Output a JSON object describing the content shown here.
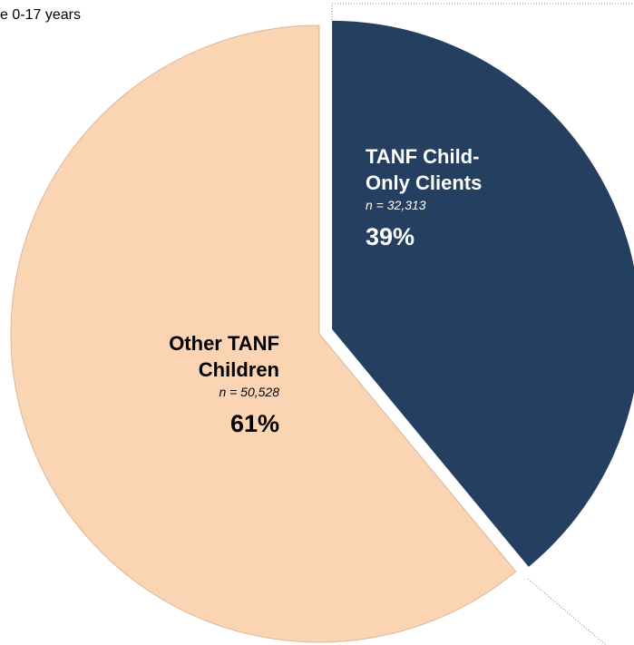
{
  "chart_data": {
    "type": "pie",
    "subtitle": "e 0-17 years",
    "categories": [
      "TANF Child-Only Clients",
      "Other TANF Children"
    ],
    "values": [
      39,
      61
    ],
    "value_labels": [
      "39%",
      "61%"
    ],
    "count_labels": [
      "n = 32,313",
      "n = 50,528"
    ],
    "colors": [
      "#253f60",
      "#fbd4b4"
    ],
    "explode": [
      true,
      false
    ]
  }
}
